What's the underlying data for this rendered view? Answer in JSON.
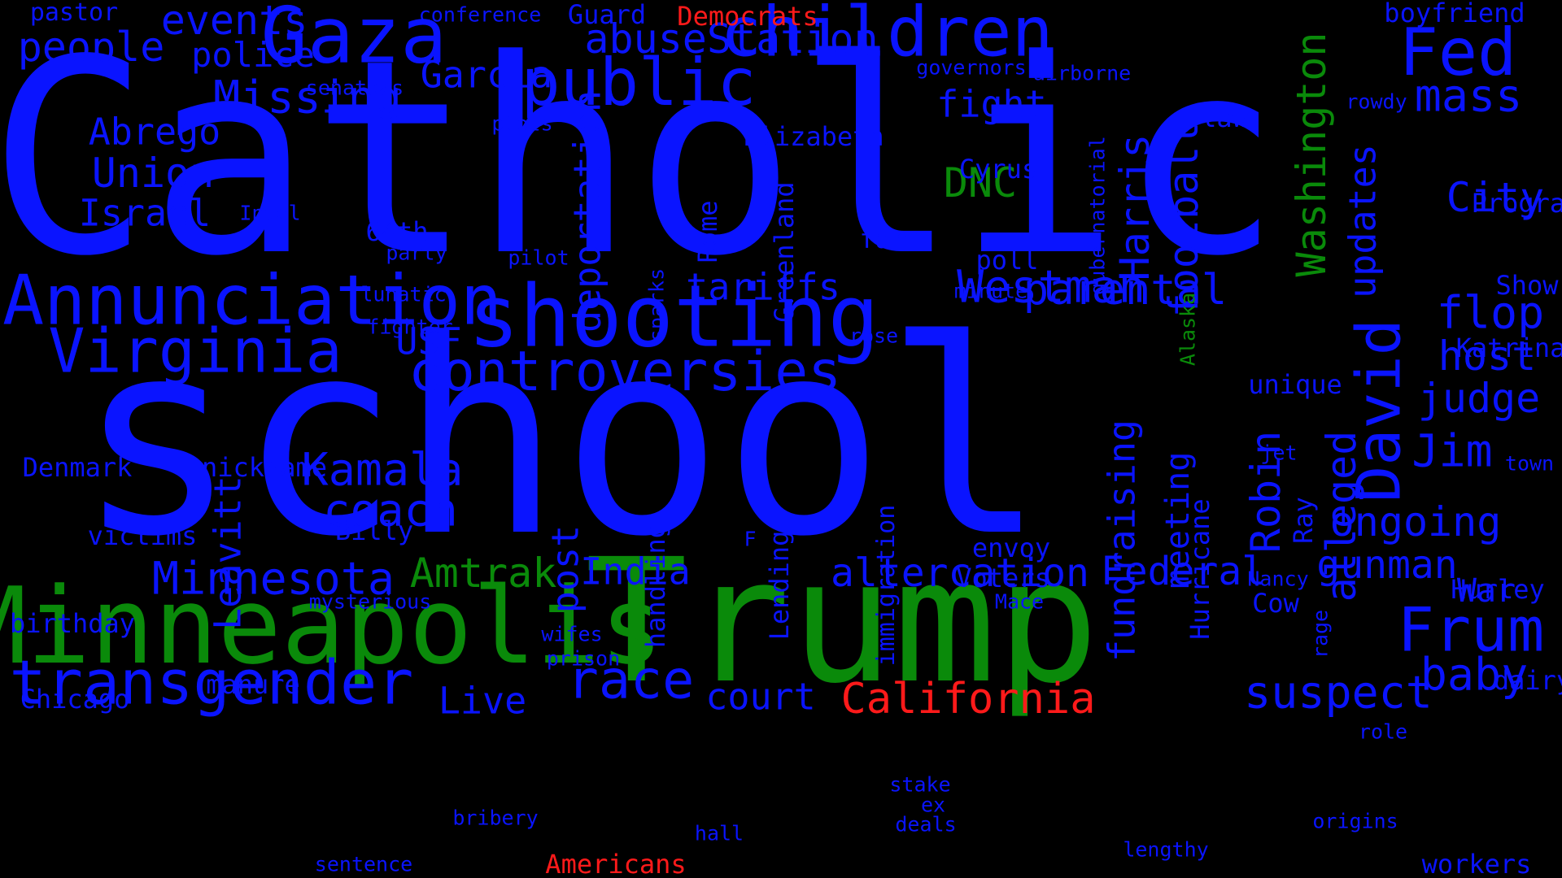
{
  "colors": {
    "background": "#000000",
    "blue": "#0a14ff",
    "green": "#0a8a0a",
    "red": "#ff1a1a"
  },
  "words": [
    {
      "id": "catholic",
      "text": "Catholic",
      "color": "blue"
    },
    {
      "id": "school",
      "text": "school",
      "color": "blue"
    },
    {
      "id": "trump",
      "text": "Trump",
      "color": "green"
    },
    {
      "id": "minneapolis",
      "text": "Minneapolis",
      "color": "green"
    },
    {
      "id": "shooting",
      "text": "shooting",
      "color": "blue"
    },
    {
      "id": "gaza",
      "text": "Gaza",
      "color": "blue"
    },
    {
      "id": "children",
      "text": "children",
      "color": "blue"
    },
    {
      "id": "public",
      "text": "public",
      "color": "blue"
    },
    {
      "id": "annunciation",
      "text": "Annunciation",
      "color": "blue"
    },
    {
      "id": "virginia",
      "text": "Virginia",
      "color": "blue"
    },
    {
      "id": "controversies",
      "text": "controversies",
      "color": "blue"
    },
    {
      "id": "transgender",
      "text": "transgender",
      "color": "blue"
    },
    {
      "id": "fed",
      "text": "Fed",
      "color": "blue"
    },
    {
      "id": "frum",
      "text": "Frum",
      "color": "blue"
    },
    {
      "id": "david",
      "text": "David",
      "color": "blue"
    },
    {
      "id": "race",
      "text": "race",
      "color": "blue"
    },
    {
      "id": "suspect",
      "text": "suspect",
      "color": "blue"
    },
    {
      "id": "california",
      "text": "California",
      "color": "red"
    },
    {
      "id": "westman",
      "text": "Westman",
      "color": "blue"
    },
    {
      "id": "parental",
      "text": "parental",
      "color": "blue"
    },
    {
      "id": "kamala",
      "text": "Kamala",
      "color": "blue"
    },
    {
      "id": "coach",
      "text": "coach",
      "color": "blue"
    },
    {
      "id": "amtrak",
      "text": "Amtrak",
      "color": "green"
    },
    {
      "id": "minnesota",
      "text": "Minnesota",
      "color": "blue"
    },
    {
      "id": "altercation",
      "text": "altercation",
      "color": "blue"
    },
    {
      "id": "federal",
      "text": "Federal",
      "color": "blue"
    },
    {
      "id": "gunman",
      "text": "gunman",
      "color": "blue"
    },
    {
      "id": "ongoing",
      "text": "ongoing",
      "color": "blue"
    },
    {
      "id": "baby",
      "text": "baby",
      "color": "blue"
    },
    {
      "id": "jim",
      "text": "Jim",
      "color": "blue"
    },
    {
      "id": "mass",
      "text": "mass",
      "color": "blue"
    },
    {
      "id": "flop",
      "text": "flop",
      "color": "blue"
    },
    {
      "id": "host",
      "text": "host",
      "color": "blue"
    },
    {
      "id": "judge",
      "text": "judge",
      "color": "blue"
    },
    {
      "id": "city",
      "text": "City",
      "color": "blue"
    },
    {
      "id": "missing",
      "text": "Missing",
      "color": "blue"
    },
    {
      "id": "abrego",
      "text": "Abrego",
      "color": "blue"
    },
    {
      "id": "union",
      "text": "Union",
      "color": "blue"
    },
    {
      "id": "israel",
      "text": "Israel",
      "color": "blue"
    },
    {
      "id": "people",
      "text": "people",
      "color": "blue"
    },
    {
      "id": "events",
      "text": "events",
      "color": "blue"
    },
    {
      "id": "police",
      "text": "police",
      "color": "blue"
    },
    {
      "id": "abusestation",
      "text": "abuseStation",
      "color": "blue"
    },
    {
      "id": "garcia",
      "text": "Garcia",
      "color": "blue"
    },
    {
      "id": "fight",
      "text": "fight",
      "color": "blue"
    },
    {
      "id": "dnc",
      "text": "DNC",
      "color": "green"
    },
    {
      "id": "tariffs",
      "text": "tariffs",
      "color": "blue"
    },
    {
      "id": "usf",
      "text": "USF",
      "color": "blue"
    },
    {
      "id": "india",
      "text": "India",
      "color": "blue"
    },
    {
      "id": "court",
      "text": "court",
      "color": "blue"
    },
    {
      "id": "live",
      "text": "Live",
      "color": "blue"
    },
    {
      "id": "war",
      "text": "War",
      "color": "blue"
    },
    {
      "id": "guard",
      "text": "Guard",
      "color": "blue"
    },
    {
      "id": "democrats",
      "text": "Democrats",
      "color": "red"
    },
    {
      "id": "boyfriend",
      "text": "boyfriend",
      "color": "blue"
    },
    {
      "id": "pastor",
      "text": "pastor",
      "color": "blue"
    },
    {
      "id": "conference",
      "text": "conference",
      "color": "blue"
    },
    {
      "id": "governors",
      "text": "governors",
      "color": "blue"
    },
    {
      "id": "airborne",
      "text": "airborne",
      "color": "blue"
    },
    {
      "id": "senators",
      "text": "senators",
      "color": "blue"
    },
    {
      "id": "plots",
      "text": "plots",
      "color": "blue"
    },
    {
      "id": "elizabeth",
      "text": "Elizabeth",
      "color": "blue"
    },
    {
      "id": "law",
      "text": "law",
      "color": "blue"
    },
    {
      "id": "rowdy",
      "text": "rowdy",
      "color": "blue"
    },
    {
      "id": "cyrus",
      "text": "Cyrus",
      "color": "blue"
    },
    {
      "id": "program",
      "text": "Program",
      "color": "blue"
    },
    {
      "id": "intel",
      "text": "Intel",
      "color": "blue"
    },
    {
      "id": "64th",
      "text": "64th",
      "color": "blue"
    },
    {
      "id": "party",
      "text": "party",
      "color": "blue"
    },
    {
      "id": "pilot",
      "text": "pilot",
      "color": "blue"
    },
    {
      "id": "farm",
      "text": "farm",
      "color": "blue"
    },
    {
      "id": "poll",
      "text": "poll",
      "color": "blue"
    },
    {
      "id": "minute",
      "text": "minute",
      "color": "blue"
    },
    {
      "id": "lunatic",
      "text": "lunatic",
      "color": "blue"
    },
    {
      "id": "fighter",
      "text": "fighter",
      "color": "blue"
    },
    {
      "id": "rose",
      "text": "rose",
      "color": "blue"
    },
    {
      "id": "show",
      "text": "Show",
      "color": "blue"
    },
    {
      "id": "katrina",
      "text": "Katrina",
      "color": "blue"
    },
    {
      "id": "unique",
      "text": "unique",
      "color": "blue"
    },
    {
      "id": "denmark",
      "text": "Denmark",
      "color": "blue"
    },
    {
      "id": "nickname",
      "text": "nickname",
      "color": "blue"
    },
    {
      "id": "jet",
      "text": "jet",
      "color": "blue"
    },
    {
      "id": "town",
      "text": "town",
      "color": "blue"
    },
    {
      "id": "victims",
      "text": "victims",
      "color": "blue"
    },
    {
      "id": "billy",
      "text": "Billy",
      "color": "blue"
    },
    {
      "id": "f",
      "text": "F",
      "color": "blue"
    },
    {
      "id": "envoy",
      "text": "envoy",
      "color": "blue"
    },
    {
      "id": "voters",
      "text": "Voters",
      "color": "blue"
    },
    {
      "id": "nancy",
      "text": "Nancy",
      "color": "blue"
    },
    {
      "id": "cow",
      "text": "Cow",
      "color": "blue"
    },
    {
      "id": "hurley",
      "text": "Hurley",
      "color": "blue"
    },
    {
      "id": "mysterious",
      "text": "mysterious",
      "color": "blue"
    },
    {
      "id": "mace",
      "text": "Mace",
      "color": "blue"
    },
    {
      "id": "birthday",
      "text": "birthday",
      "color": "blue"
    },
    {
      "id": "wifes",
      "text": "wifes",
      "color": "blue"
    },
    {
      "id": "prison",
      "text": "prison",
      "color": "blue"
    },
    {
      "id": "chicago",
      "text": "Chicago",
      "color": "blue"
    },
    {
      "id": "manure",
      "text": "manure",
      "color": "blue"
    },
    {
      "id": "dairy",
      "text": "dairy",
      "color": "blue"
    },
    {
      "id": "role",
      "text": "role",
      "color": "blue"
    },
    {
      "id": "stake",
      "text": "stake",
      "color": "blue"
    },
    {
      "id": "ex",
      "text": "ex",
      "color": "blue"
    },
    {
      "id": "deals",
      "text": "deals",
      "color": "blue"
    },
    {
      "id": "bribery",
      "text": "bribery",
      "color": "blue"
    },
    {
      "id": "hall",
      "text": "hall",
      "color": "blue"
    },
    {
      "id": "origins",
      "text": "origins",
      "color": "blue"
    },
    {
      "id": "lengthy",
      "text": "lengthy",
      "color": "blue"
    },
    {
      "id": "sentence",
      "text": "sentence",
      "color": "blue"
    },
    {
      "id": "americans",
      "text": "Americans",
      "color": "red"
    },
    {
      "id": "workers",
      "text": "workers",
      "color": "blue"
    },
    {
      "id": "deportation",
      "text": "deportation",
      "color": "blue"
    },
    {
      "id": "leavitt",
      "text": "Leavitt",
      "color": "blue"
    },
    {
      "id": "post",
      "text": "post",
      "color": "blue"
    },
    {
      "id": "handling",
      "text": "handling",
      "color": "blue"
    },
    {
      "id": "lending",
      "text": "Lending",
      "color": "blue"
    },
    {
      "id": "immigration",
      "text": "immigration",
      "color": "blue"
    },
    {
      "id": "greenland",
      "text": "Greenland",
      "color": "blue"
    },
    {
      "id": "rome",
      "text": "Rome",
      "color": "blue"
    },
    {
      "id": "sparks",
      "text": "sparks",
      "color": "blue"
    },
    {
      "id": "harris",
      "text": "Harris",
      "color": "blue"
    },
    {
      "id": "football",
      "text": "football",
      "color": "blue"
    },
    {
      "id": "washington",
      "text": "Washington",
      "color": "green"
    },
    {
      "id": "updates",
      "text": "updates",
      "color": "blue"
    },
    {
      "id": "gubernatorial",
      "text": "gubernatorial",
      "color": "blue"
    },
    {
      "id": "alaska",
      "text": "Alaska",
      "color": "green"
    },
    {
      "id": "fundraising",
      "text": "fundraising",
      "color": "blue"
    },
    {
      "id": "meeting",
      "text": "meeting",
      "color": "blue"
    },
    {
      "id": "hurricane",
      "text": "Hurricane",
      "color": "blue"
    },
    {
      "id": "robin",
      "text": "Robin",
      "color": "blue"
    },
    {
      "id": "alleged",
      "text": "alleged",
      "color": "blue"
    },
    {
      "id": "ray",
      "text": "Ray",
      "color": "blue"
    },
    {
      "id": "rage",
      "text": "rage",
      "color": "blue"
    }
  ]
}
